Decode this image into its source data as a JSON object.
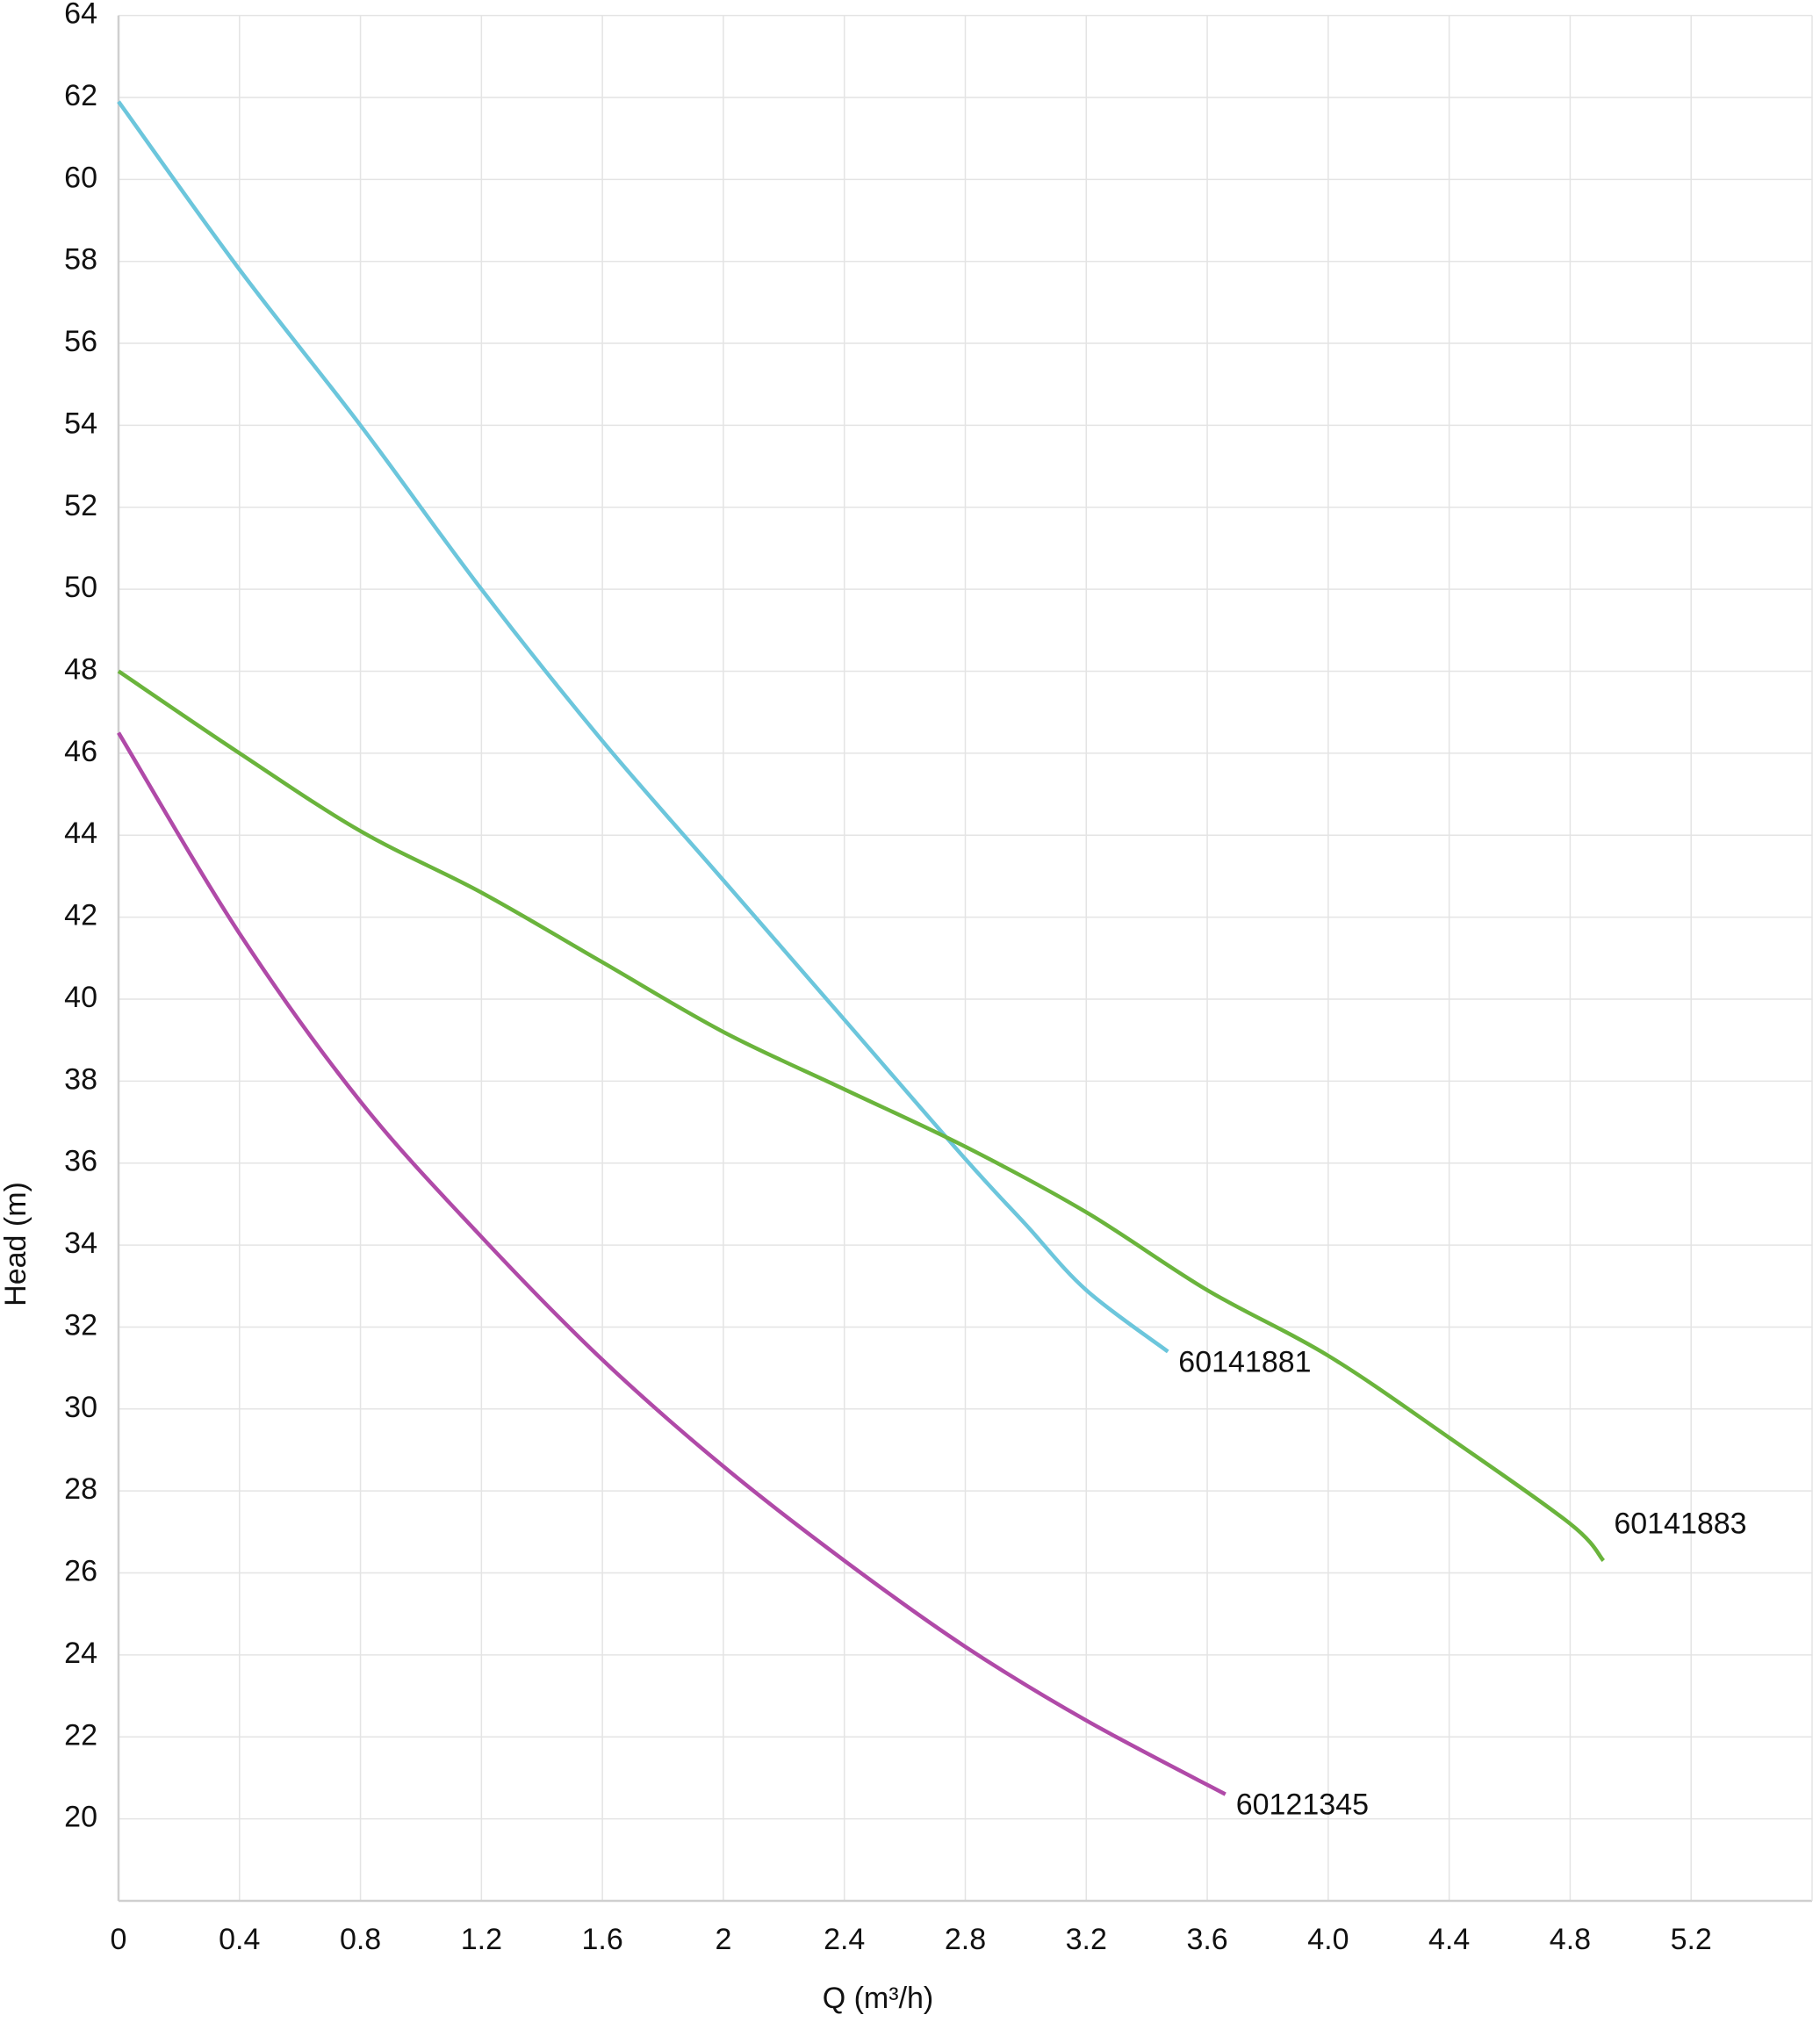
{
  "chart_data": {
    "type": "line",
    "x_label": "Q (m³/h)",
    "y_label": "Head (m)",
    "xlim": [
      0,
      5.6
    ],
    "ylim": [
      18,
      64
    ],
    "xticks": [
      0,
      0.4,
      0.8,
      1.2,
      1.6,
      2,
      2.4,
      2.8,
      3.2,
      3.6,
      {
        "value": 4,
        "label": "4.0"
      },
      4.4,
      4.8,
      5.2
    ],
    "yticks": [
      20,
      22,
      24,
      26,
      28,
      30,
      32,
      34,
      36,
      38,
      40,
      42,
      44,
      46,
      48,
      50,
      52,
      54,
      56,
      58,
      60,
      62,
      64
    ],
    "grid": true,
    "series": [
      {
        "name": "60141881",
        "color": "#6cc6dc",
        "x": [
          0,
          0.4,
          0.8,
          1.2,
          1.6,
          2.0,
          2.4,
          2.8,
          3.0,
          3.2,
          3.47
        ],
        "values": [
          61.9,
          57.8,
          54.0,
          50.0,
          46.3,
          42.9,
          39.5,
          36.1,
          34.5,
          32.9,
          31.4
        ]
      },
      {
        "name": "60141883",
        "color": "#6ab43c",
        "x": [
          0,
          0.4,
          0.8,
          1.2,
          1.6,
          2.0,
          2.4,
          2.8,
          3.2,
          3.6,
          4.0,
          4.4,
          4.8,
          4.91
        ],
        "values": [
          48.0,
          46.0,
          44.1,
          42.6,
          40.9,
          39.2,
          37.8,
          36.4,
          34.8,
          32.9,
          31.3,
          29.3,
          27.2,
          26.3
        ]
      },
      {
        "name": "60121345",
        "color": "#b04aa8",
        "x": [
          0,
          0.4,
          0.8,
          1.2,
          1.6,
          2.0,
          2.4,
          2.8,
          3.2,
          3.66
        ],
        "values": [
          46.5,
          41.6,
          37.5,
          34.2,
          31.2,
          28.6,
          26.3,
          24.2,
          22.4,
          20.6
        ]
      }
    ]
  }
}
